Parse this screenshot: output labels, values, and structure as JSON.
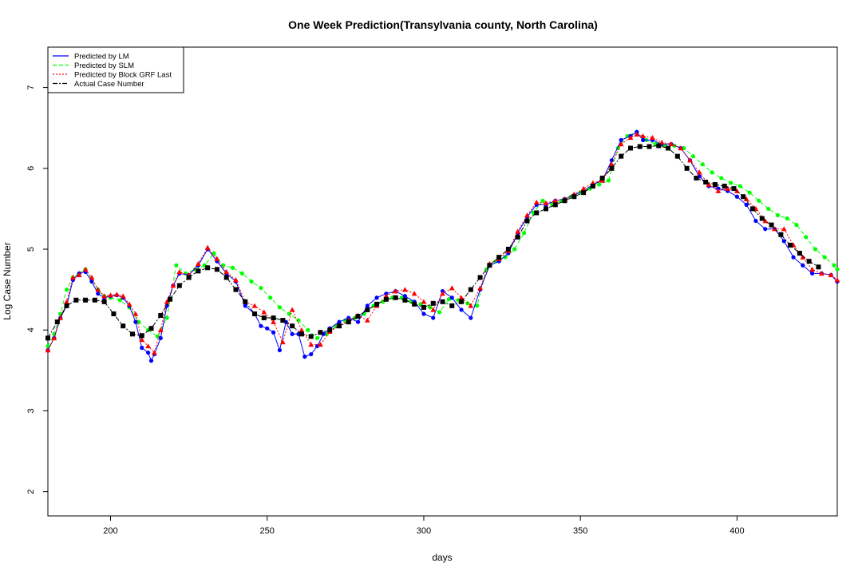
{
  "chart_data": {
    "type": "line",
    "title": "One Week Prediction(Transylvania county, North Carolina)",
    "xlabel": "days",
    "ylabel": "Log Case Number",
    "xlim": [
      180,
      432
    ],
    "ylim": [
      1.7,
      7.5
    ],
    "xticks": [
      200,
      250,
      300,
      350,
      400
    ],
    "yticks": [
      2,
      3,
      4,
      5,
      6,
      7
    ],
    "legend_position": "top-left",
    "series": [
      {
        "name": "Predicted by LM",
        "color": "#0000ff",
        "marker": "circle",
        "x": [
          180,
          182,
          184,
          186,
          188,
          190,
          192,
          194,
          196,
          198,
          200,
          202,
          204,
          206,
          208,
          210,
          212,
          213,
          214,
          216,
          218,
          220,
          222,
          225,
          228,
          231,
          234,
          237,
          240,
          243,
          246,
          248,
          250,
          252,
          254,
          256,
          258,
          260,
          262,
          264,
          266,
          268,
          270,
          273,
          276,
          279,
          282,
          285,
          288,
          291,
          294,
          297,
          300,
          303,
          306,
          309,
          312,
          315,
          318,
          321,
          324,
          327,
          330,
          333,
          336,
          339,
          342,
          345,
          348,
          351,
          354,
          357,
          360,
          363,
          366,
          368,
          370,
          373,
          376,
          379,
          382,
          385,
          388,
          391,
          394,
          397,
          400,
          403,
          406,
          409,
          412,
          415,
          418,
          421,
          424,
          427,
          430,
          432
        ],
        "y": [
          3.75,
          3.9,
          4.15,
          4.3,
          4.62,
          4.7,
          4.72,
          4.6,
          4.45,
          4.4,
          4.42,
          4.43,
          4.4,
          4.3,
          4.1,
          3.78,
          3.72,
          3.62,
          3.7,
          3.9,
          4.3,
          4.55,
          4.7,
          4.68,
          4.8,
          5.0,
          4.85,
          4.7,
          4.6,
          4.3,
          4.2,
          4.05,
          4.02,
          3.97,
          3.75,
          4.1,
          3.95,
          3.95,
          3.67,
          3.7,
          3.8,
          3.95,
          4.02,
          4.1,
          4.15,
          4.1,
          4.3,
          4.4,
          4.45,
          4.48,
          4.42,
          4.35,
          4.2,
          4.15,
          4.48,
          4.4,
          4.25,
          4.15,
          4.5,
          4.8,
          4.85,
          4.95,
          5.2,
          5.4,
          5.55,
          5.55,
          5.6,
          5.62,
          5.67,
          5.72,
          5.8,
          5.85,
          6.1,
          6.35,
          6.4,
          6.45,
          6.35,
          6.35,
          6.3,
          6.3,
          6.25,
          6.1,
          5.9,
          5.78,
          5.75,
          5.72,
          5.65,
          5.55,
          5.35,
          5.25,
          5.25,
          5.1,
          4.9,
          4.8,
          4.7,
          4.7,
          4.68,
          4.6
        ]
      },
      {
        "name": "Predicted by SLM",
        "color": "#00ff00",
        "marker": "circle",
        "x": [
          180,
          182,
          184,
          186,
          188,
          190,
          192,
          194,
          196,
          198,
          200,
          203,
          206,
          209,
          212,
          215,
          218,
          221,
          224,
          227,
          230,
          233,
          236,
          239,
          242,
          245,
          248,
          251,
          254,
          257,
          260,
          263,
          266,
          269,
          272,
          275,
          278,
          281,
          284,
          287,
          290,
          293,
          296,
          299,
          302,
          305,
          308,
          311,
          314,
          317,
          320,
          323,
          326,
          329,
          332,
          335,
          338,
          341,
          344,
          347,
          350,
          353,
          356,
          359,
          362,
          365,
          368,
          371,
          374,
          377,
          380,
          383,
          386,
          389,
          392,
          395,
          398,
          401,
          404,
          407,
          410,
          413,
          416,
          419,
          422,
          425,
          428,
          431,
          432
        ],
        "y": [
          3.8,
          3.95,
          4.2,
          4.5,
          4.65,
          4.7,
          4.75,
          4.62,
          4.5,
          4.42,
          4.4,
          4.37,
          4.28,
          4.1,
          4.0,
          3.92,
          4.15,
          4.8,
          4.7,
          4.75,
          4.8,
          4.95,
          4.8,
          4.77,
          4.7,
          4.6,
          4.52,
          4.4,
          4.28,
          4.2,
          4.12,
          4.0,
          3.9,
          3.95,
          4.05,
          4.12,
          4.15,
          4.2,
          4.3,
          4.35,
          4.4,
          4.4,
          4.35,
          4.32,
          4.28,
          4.22,
          4.38,
          4.37,
          4.33,
          4.3,
          4.75,
          4.85,
          4.9,
          5.0,
          5.2,
          5.45,
          5.6,
          5.55,
          5.6,
          5.65,
          5.7,
          5.75,
          5.8,
          5.85,
          6.25,
          6.4,
          6.45,
          6.35,
          6.3,
          6.28,
          6.28,
          6.25,
          6.15,
          6.05,
          5.95,
          5.88,
          5.82,
          5.78,
          5.7,
          5.6,
          5.5,
          5.42,
          5.38,
          5.3,
          5.15,
          5.0,
          4.9,
          4.8,
          4.75
        ]
      },
      {
        "name": "Predicted by Block GRF Last",
        "color": "#ff0000",
        "marker": "triangle",
        "x": [
          180,
          182,
          184,
          186,
          188,
          190,
          192,
          194,
          196,
          198,
          200,
          202,
          204,
          206,
          208,
          210,
          212,
          214,
          216,
          218,
          220,
          222,
          225,
          228,
          231,
          234,
          237,
          240,
          243,
          246,
          249,
          252,
          255,
          258,
          261,
          264,
          267,
          270,
          273,
          276,
          279,
          282,
          285,
          288,
          291,
          294,
          297,
          300,
          303,
          306,
          309,
          312,
          315,
          318,
          321,
          324,
          327,
          330,
          333,
          336,
          339,
          342,
          345,
          348,
          351,
          354,
          357,
          360,
          363,
          366,
          368,
          370,
          373,
          376,
          379,
          382,
          385,
          388,
          391,
          394,
          397,
          400,
          403,
          406,
          409,
          412,
          415,
          418,
          421,
          424,
          427,
          430,
          432
        ],
        "y": [
          3.75,
          3.9,
          4.15,
          4.35,
          4.65,
          4.68,
          4.75,
          4.65,
          4.5,
          4.42,
          4.43,
          4.44,
          4.42,
          4.32,
          4.2,
          3.88,
          3.8,
          3.72,
          4.0,
          4.35,
          4.55,
          4.72,
          4.68,
          4.82,
          5.02,
          4.88,
          4.72,
          4.62,
          4.35,
          4.3,
          4.22,
          4.1,
          3.85,
          4.25,
          4.0,
          3.82,
          3.82,
          3.98,
          4.05,
          4.12,
          4.18,
          4.12,
          4.3,
          4.42,
          4.48,
          4.5,
          4.45,
          4.35,
          4.25,
          4.45,
          4.52,
          4.4,
          4.3,
          4.52,
          4.82,
          4.88,
          4.98,
          5.22,
          5.42,
          5.58,
          5.57,
          5.6,
          5.62,
          5.68,
          5.75,
          5.82,
          5.85,
          6.05,
          6.3,
          6.38,
          6.42,
          6.4,
          6.38,
          6.32,
          6.3,
          6.25,
          6.1,
          5.95,
          5.8,
          5.72,
          5.75,
          5.72,
          5.62,
          5.5,
          5.35,
          5.25,
          5.25,
          5.05,
          4.9,
          4.75,
          4.7,
          4.68,
          4.62
        ]
      },
      {
        "name": "Actual Case Number",
        "color": "#000000",
        "marker": "square",
        "x": [
          180,
          183,
          186,
          189,
          192,
          195,
          198,
          201,
          204,
          207,
          210,
          213,
          216,
          219,
          222,
          225,
          228,
          231,
          234,
          237,
          240,
          243,
          246,
          249,
          252,
          255,
          258,
          261,
          264,
          267,
          270,
          273,
          276,
          279,
          282,
          285,
          288,
          291,
          294,
          297,
          300,
          303,
          306,
          309,
          312,
          315,
          318,
          321,
          324,
          327,
          330,
          333,
          336,
          339,
          342,
          345,
          348,
          351,
          354,
          357,
          360,
          363,
          366,
          369,
          372,
          375,
          378,
          381,
          384,
          387,
          390,
          393,
          396,
          399,
          402,
          405,
          408,
          411,
          414,
          417,
          420,
          423,
          426
        ],
        "y": [
          3.9,
          4.1,
          4.3,
          4.37,
          4.37,
          4.37,
          4.35,
          4.2,
          4.05,
          3.95,
          3.93,
          4.02,
          4.18,
          4.38,
          4.55,
          4.65,
          4.73,
          4.77,
          4.75,
          4.65,
          4.5,
          4.35,
          4.2,
          4.15,
          4.15,
          4.12,
          4.05,
          3.95,
          3.92,
          3.97,
          4.0,
          4.05,
          4.1,
          4.17,
          4.25,
          4.32,
          4.38,
          4.4,
          4.37,
          4.32,
          4.28,
          4.33,
          4.35,
          4.3,
          4.35,
          4.5,
          4.65,
          4.8,
          4.9,
          5.0,
          5.15,
          5.35,
          5.45,
          5.5,
          5.55,
          5.6,
          5.65,
          5.7,
          5.78,
          5.88,
          6.0,
          6.15,
          6.25,
          6.27,
          6.27,
          6.28,
          6.25,
          6.15,
          6.0,
          5.88,
          5.83,
          5.8,
          5.78,
          5.75,
          5.65,
          5.5,
          5.38,
          5.3,
          5.18,
          5.05,
          4.95,
          4.85,
          4.78
        ]
      }
    ]
  }
}
